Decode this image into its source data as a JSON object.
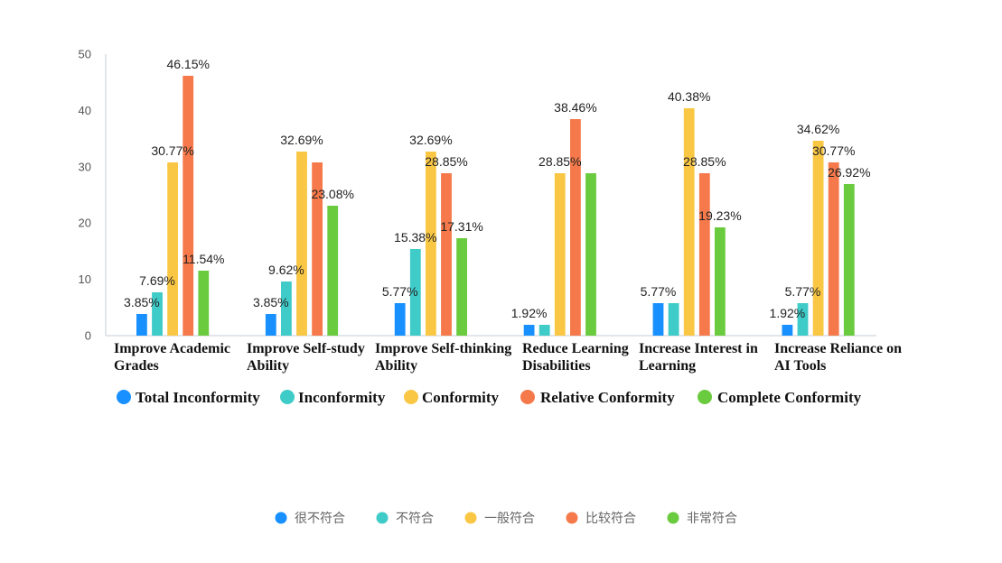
{
  "chart_data": {
    "type": "bar",
    "ylim": [
      0,
      50
    ],
    "yticks": [
      0,
      10,
      20,
      30,
      40,
      50
    ],
    "grid": false,
    "categories": [
      [
        "Improve Academic",
        "Grades"
      ],
      [
        "Improve Self-study",
        "Ability"
      ],
      [
        "Improve Self-thinking",
        "Ability"
      ],
      [
        "Reduce Learning",
        "Disabilities"
      ],
      [
        "Increase Interest in",
        "Learning"
      ],
      [
        "Increase Reliance on",
        "AI Tools"
      ]
    ],
    "series": [
      {
        "name": "Total Inconformity",
        "name_zh": "很不符合",
        "color": "#1890FF",
        "values": [
          3.85,
          3.85,
          5.77,
          1.92,
          5.77,
          1.92
        ],
        "labels": [
          "3.85%",
          "3.85%",
          "5.77%",
          "1.92%",
          "5.77%",
          "1.92%"
        ]
      },
      {
        "name": "Inconformity",
        "name_zh": "不符合",
        "color": "#3FCBC8",
        "values": [
          7.69,
          9.62,
          15.38,
          1.92,
          5.77,
          5.77
        ],
        "labels": [
          "7.69%",
          "9.62%",
          "15.38%",
          null,
          null,
          "5.77%"
        ]
      },
      {
        "name": "Conformity",
        "name_zh": "一般符合",
        "color": "#FAC744",
        "values": [
          30.77,
          32.69,
          32.69,
          28.85,
          40.38,
          34.62
        ],
        "labels": [
          "30.77%",
          "32.69%",
          "32.69%",
          "28.85%",
          "40.38%",
          "34.62%"
        ]
      },
      {
        "name": "Relative Conformity",
        "name_zh": "比较符合",
        "color": "#F5794A",
        "values": [
          46.15,
          30.77,
          28.85,
          38.46,
          28.85,
          30.77
        ],
        "labels": [
          "46.15%",
          null,
          "28.85%",
          "38.46%",
          "28.85%",
          "30.77%"
        ]
      },
      {
        "name": "Complete Conformity",
        "name_zh": "非常符合",
        "color": "#6BCB3F",
        "values": [
          11.54,
          23.08,
          17.31,
          28.85,
          19.23,
          26.92
        ],
        "labels": [
          "11.54%",
          "23.08%",
          "17.31%",
          null,
          "19.23%",
          "26.92%"
        ]
      }
    ]
  }
}
